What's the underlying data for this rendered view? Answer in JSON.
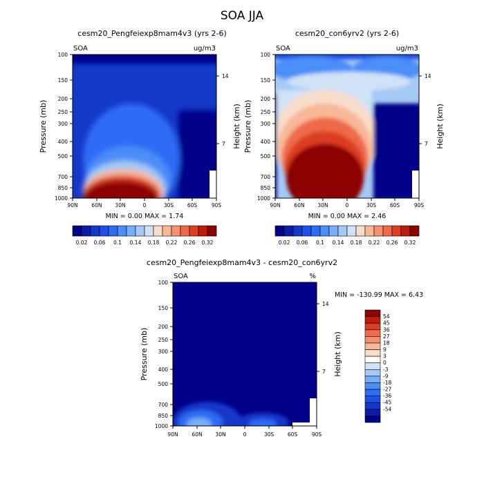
{
  "title": "SOA JJA",
  "panels": [
    {
      "subtitle": "cesm20_Pengfeiexp8mam4v3 (yrs 2-6)",
      "left_label": "SOA",
      "right_label": "ug/m3",
      "minmax": "MIN =   0.00  MAX =    1.74"
    },
    {
      "subtitle": "cesm20_con6yrv2 (yrs 2-6)",
      "left_label": "SOA",
      "right_label": "ug/m3",
      "minmax": "MIN =   0.00  MAX =    2.46"
    },
    {
      "subtitle": "cesm20_Pengfeiexp8mam4v3 - cesm20_con6yrv2",
      "left_label": "SOA",
      "right_label": "%",
      "minmax": "MIN = -130.99  MAX =    6.43"
    }
  ],
  "axes": {
    "ylabel": "Pressure (mb)",
    "ylabel_right": "Height (km)"
  },
  "colors": {
    "abs_scale": [
      "#000088",
      "#0a1ca8",
      "#1438c8",
      "#1e50e6",
      "#2d6cf5",
      "#4c8ef8",
      "#77aef8",
      "#a4c9f5",
      "#cfe2f6",
      "#f8ddcb",
      "#f8b898",
      "#f59170",
      "#ee6a4a",
      "#dc3e22",
      "#bd1b0c",
      "#8c0000"
    ],
    "diff_scale": [
      "#000088",
      "#0a1ca8",
      "#1438c8",
      "#1e50e6",
      "#2d6cf5",
      "#4c8ef8",
      "#77aef8",
      "#a4c9f5",
      "#cfe2f6",
      "#ffffff",
      "#f8ddcb",
      "#f8b898",
      "#f59170",
      "#ee6a4a",
      "#dc3e22",
      "#bd1b0c",
      "#8c0000"
    ]
  },
  "chart_data": [
    {
      "type": "heatmap",
      "title": "cesm20_Pengfeiexp8mam4v3 (yrs 2-6)",
      "subtitle_left": "SOA",
      "units": "ug/m3",
      "xlabel": "",
      "ylabel": "Pressure (mb)",
      "ylabel_right": "Height (km)",
      "x_ticks": [
        "90N",
        "60N",
        "30N",
        "0",
        "30S",
        "60S",
        "90S"
      ],
      "y_ticks": [
        100,
        150,
        200,
        250,
        300,
        400,
        500,
        700,
        850,
        1000
      ],
      "y_right_ticks": [
        14,
        7
      ],
      "ylim": [
        1000,
        100
      ],
      "y_scale": "log",
      "min": 0.0,
      "max": 1.74,
      "levels": [
        0.02,
        0.04,
        0.06,
        0.08,
        0.1,
        0.12,
        0.14,
        0.16,
        0.18,
        0.2,
        0.22,
        0.24,
        0.26,
        0.28,
        0.3,
        0.32
      ],
      "colorbar_labels": [
        "0.02",
        "0.06",
        "0.1",
        "0.14",
        "0.18",
        "0.22",
        "0.26",
        "0.32"
      ]
    },
    {
      "type": "heatmap",
      "title": "cesm20_con6yrv2 (yrs 2-6)",
      "subtitle_left": "SOA",
      "units": "ug/m3",
      "xlabel": "",
      "ylabel": "Pressure (mb)",
      "ylabel_right": "Height (km)",
      "x_ticks": [
        "90N",
        "60N",
        "30N",
        "0",
        "30S",
        "60S",
        "90S"
      ],
      "y_ticks": [
        100,
        150,
        200,
        250,
        300,
        400,
        500,
        700,
        850,
        1000
      ],
      "y_right_ticks": [
        14,
        7
      ],
      "ylim": [
        1000,
        100
      ],
      "y_scale": "log",
      "min": 0.0,
      "max": 2.46,
      "levels": [
        0.02,
        0.04,
        0.06,
        0.08,
        0.1,
        0.12,
        0.14,
        0.16,
        0.18,
        0.2,
        0.22,
        0.24,
        0.26,
        0.28,
        0.3,
        0.32
      ],
      "colorbar_labels": [
        "0.02",
        "0.06",
        "0.1",
        "0.14",
        "0.18",
        "0.22",
        "0.26",
        "0.32"
      ]
    },
    {
      "type": "heatmap",
      "title": "cesm20_Pengfeiexp8mam4v3 - cesm20_con6yrv2",
      "subtitle_left": "SOA",
      "units": "%",
      "xlabel": "",
      "ylabel": "Pressure (mb)",
      "ylabel_right": "Height (km)",
      "x_ticks": [
        "90N",
        "60N",
        "30N",
        "0",
        "30S",
        "60S",
        "90S"
      ],
      "y_ticks": [
        100,
        150,
        200,
        250,
        300,
        400,
        500,
        700,
        850,
        1000
      ],
      "y_right_ticks": [
        14,
        7
      ],
      "ylim": [
        1000,
        100
      ],
      "y_scale": "log",
      "min": -130.99,
      "max": 6.43,
      "levels": [
        -54,
        -45,
        -36,
        -27,
        -18,
        -9,
        -3,
        0,
        3,
        9,
        18,
        27,
        36,
        45,
        54
      ],
      "colorbar_labels": [
        "54",
        "45",
        "36",
        "27",
        "18",
        "9",
        "3",
        "0",
        "-3",
        "-9",
        "-18",
        "-27",
        "-36",
        "-45",
        "-54"
      ]
    }
  ]
}
